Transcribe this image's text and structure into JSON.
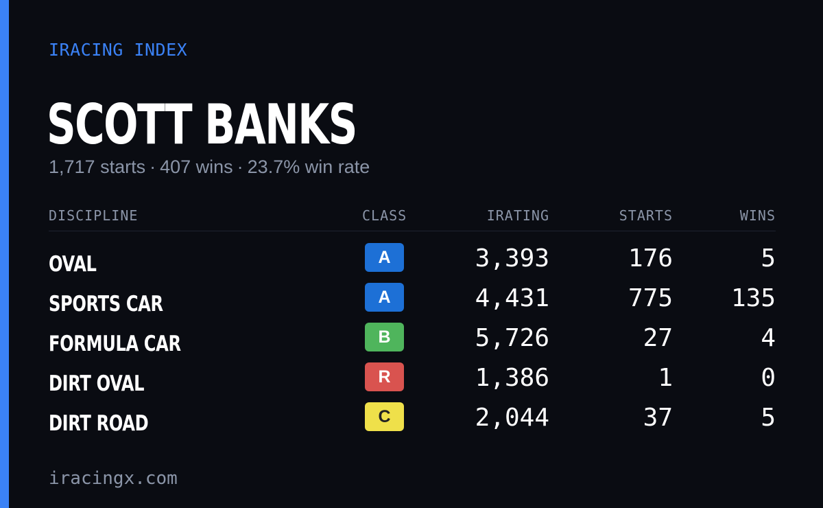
{
  "brand": "IRACING INDEX",
  "driver": {
    "name": "SCOTT BANKS",
    "starts": "1,717 starts",
    "wins": "407 wins",
    "win_rate": "23.7% win rate",
    "separator": "·"
  },
  "table": {
    "headers": {
      "discipline": "DISCIPLINE",
      "class": "CLASS",
      "irating": "IRATING",
      "starts": "STARTS",
      "wins": "WINS"
    },
    "rows": [
      {
        "discipline": "OVAL",
        "class": "A",
        "class_bg": "#1d70d6",
        "class_fg": "#ffffff",
        "irating": "3,393",
        "starts": "176",
        "wins": "5"
      },
      {
        "discipline": "SPORTS CAR",
        "class": "A",
        "class_bg": "#1d70d6",
        "class_fg": "#ffffff",
        "irating": "4,431",
        "starts": "775",
        "wins": "135"
      },
      {
        "discipline": "FORMULA CAR",
        "class": "B",
        "class_bg": "#4fb55c",
        "class_fg": "#ffffff",
        "irating": "5,726",
        "starts": "27",
        "wins": "4"
      },
      {
        "discipline": "DIRT OVAL",
        "class": "R",
        "class_bg": "#d9534f",
        "class_fg": "#ffffff",
        "irating": "1,386",
        "starts": "1",
        "wins": "0"
      },
      {
        "discipline": "DIRT ROAD",
        "class": "C",
        "class_bg": "#efe04a",
        "class_fg": "#222222",
        "irating": "2,044",
        "starts": "37",
        "wins": "5"
      }
    ]
  },
  "footer": "iracingx.com",
  "colors": {
    "accent": "#3b82f6",
    "background": "#0a0c12",
    "muted": "#8b95a8"
  }
}
